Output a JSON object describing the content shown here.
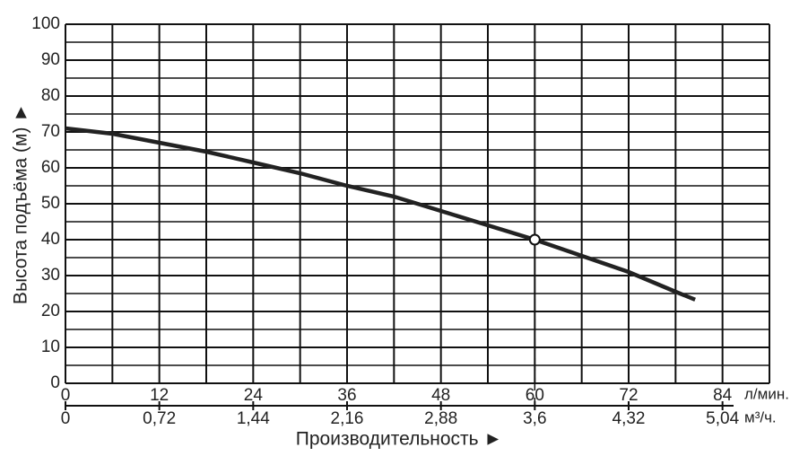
{
  "chart_data": {
    "type": "line",
    "x_label": "Производительность ►",
    "y_label": "Высота подъёма (м) ►",
    "x_unit": "л/мин.",
    "x2_unit": "м³/ч.",
    "xlim": [
      0,
      90
    ],
    "xticks": [
      0,
      12,
      24,
      36,
      48,
      60,
      72,
      84
    ],
    "minor_xticks": [
      6,
      18,
      30,
      42,
      54,
      66,
      78,
      90
    ],
    "x2lim": [
      0,
      5.4
    ],
    "x2ticks": [
      0,
      {
        "value": 0.72,
        "label": "0,72"
      },
      {
        "value": 1.44,
        "label": "1,44"
      },
      {
        "value": 2.16,
        "label": "2,16"
      },
      {
        "value": 2.88,
        "label": "2,88"
      },
      {
        "value": 3.6,
        "label": "3,6"
      },
      {
        "value": 4.32,
        "label": "4,32"
      },
      {
        "value": 5.04,
        "label": "5,04"
      }
    ],
    "ylim": [
      0,
      100
    ],
    "yticks": [
      0,
      10,
      20,
      30,
      40,
      50,
      60,
      70,
      80,
      90,
      100
    ],
    "minor_yticks": [
      5,
      15,
      25,
      35,
      45,
      55,
      65,
      75,
      85,
      95
    ],
    "grid": true,
    "series": [
      {
        "color": "#222222",
        "x": [
          0,
          6,
          12,
          18,
          24,
          30,
          36,
          42,
          48,
          54,
          60,
          66,
          72,
          78,
          80.5
        ],
        "values": [
          71,
          69.5,
          67,
          64.5,
          61.5,
          58.5,
          55,
          52,
          48,
          44,
          40,
          35.5,
          31,
          25.5,
          23.3
        ]
      }
    ],
    "operating_point": {
      "x": 60,
      "y": 40
    }
  }
}
